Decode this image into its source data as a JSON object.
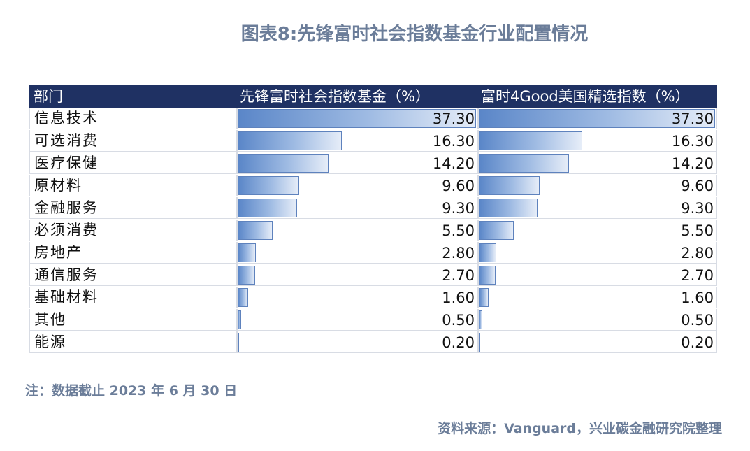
{
  "title": "图表8:先锋富时社会指数基金行业配置情况",
  "note": "注：数据截止 2023 年 6 月 30 日",
  "source": "资料来源：Vanguard，兴业碳金融研究院整理",
  "colors": {
    "header_bg": "#1f3163",
    "bar_start": "#5a86c8",
    "bar_end": "#e6edf8",
    "text_accent": "#6b7d99"
  },
  "chart_data": {
    "type": "table",
    "columns": [
      "部门",
      "先锋富时社会指数基金（%）",
      "富时4Good美国精选指数（%）"
    ],
    "rows": [
      {
        "sector": "信息技术",
        "fund": "37.30",
        "index": "37.30"
      },
      {
        "sector": "可选消费",
        "fund": "16.30",
        "index": "16.30"
      },
      {
        "sector": "医疗保健",
        "fund": "14.20",
        "index": "14.20"
      },
      {
        "sector": "原材料",
        "fund": "9.60",
        "index": "9.60"
      },
      {
        "sector": "金融服务",
        "fund": "9.30",
        "index": "9.30"
      },
      {
        "sector": "必须消费",
        "fund": "5.50",
        "index": "5.50"
      },
      {
        "sector": "房地产",
        "fund": "2.80",
        "index": "2.80"
      },
      {
        "sector": "通信服务",
        "fund": "2.70",
        "index": "2.70"
      },
      {
        "sector": "基础材料",
        "fund": "1.60",
        "index": "1.60"
      },
      {
        "sector": "其他",
        "fund": "0.50",
        "index": "0.50"
      },
      {
        "sector": "能源",
        "fund": "0.20",
        "index": "0.20"
      }
    ],
    "max_value": 37.3
  }
}
